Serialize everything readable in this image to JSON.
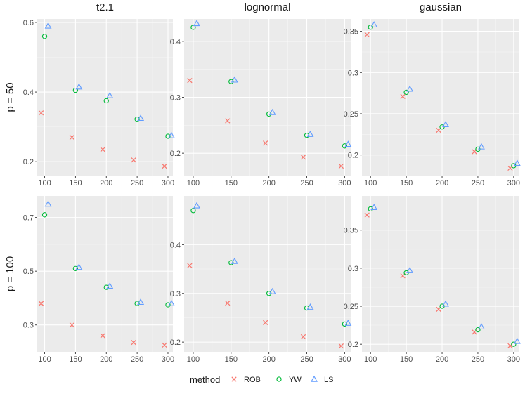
{
  "chart_data": {
    "type": "scatter",
    "facet_columns": [
      "t2.1",
      "lognormal",
      "gaussian"
    ],
    "facet_rows": [
      "p = 50",
      "p = 100"
    ],
    "legend": {
      "title": "method",
      "position": "bottom"
    },
    "grid": true,
    "series": [
      {
        "name": "ROB",
        "color": "#F8766D",
        "shape": "x"
      },
      {
        "name": "YW",
        "color": "#00BA38",
        "shape": "circle"
      },
      {
        "name": "LS",
        "color": "#619CFF",
        "shape": "triangle"
      }
    ],
    "xlim": [
      88,
      308
    ],
    "xticks": [
      100,
      150,
      200,
      250,
      300
    ],
    "x_values": [
      100,
      150,
      200,
      250,
      300
    ],
    "panels": [
      {
        "col": "t2.1",
        "row": "p = 50",
        "ylim": [
          0.16,
          0.61
        ],
        "yticks": [
          0.2,
          0.4,
          0.6
        ],
        "values": {
          "ROB": [
            0.34,
            0.27,
            0.235,
            0.205,
            0.187
          ],
          "YW": [
            0.56,
            0.405,
            0.375,
            0.322,
            0.273
          ],
          "LS": [
            0.59,
            0.415,
            0.39,
            0.325,
            0.275
          ]
        }
      },
      {
        "col": "lognormal",
        "row": "p = 50",
        "ylim": [
          0.16,
          0.44
        ],
        "yticks": [
          0.2,
          0.3,
          0.4
        ],
        "values": {
          "ROB": [
            0.33,
            0.258,
            0.218,
            0.193,
            0.177
          ],
          "YW": [
            0.425,
            0.328,
            0.27,
            0.232,
            0.213
          ],
          "LS": [
            0.432,
            0.331,
            0.273,
            0.234,
            0.216
          ]
        }
      },
      {
        "col": "gaussian",
        "row": "p = 50",
        "ylim": [
          0.175,
          0.365
        ],
        "yticks": [
          0.2,
          0.25,
          0.3,
          0.35
        ],
        "values": {
          "ROB": [
            0.346,
            0.271,
            0.23,
            0.204,
            0.184
          ],
          "YW": [
            0.355,
            0.276,
            0.234,
            0.207,
            0.187
          ],
          "LS": [
            0.358,
            0.28,
            0.237,
            0.21,
            0.19
          ]
        }
      },
      {
        "col": "t2.1",
        "row": "p = 100",
        "ylim": [
          0.2,
          0.78
        ],
        "yticks": [
          0.3,
          0.5,
          0.7
        ],
        "values": {
          "ROB": [
            0.38,
            0.3,
            0.26,
            0.235,
            0.225
          ],
          "YW": [
            0.71,
            0.51,
            0.44,
            0.38,
            0.375
          ],
          "LS": [
            0.75,
            0.515,
            0.445,
            0.385,
            0.38
          ]
        }
      },
      {
        "col": "lognormal",
        "row": "p = 100",
        "ylim": [
          0.18,
          0.5
        ],
        "yticks": [
          0.2,
          0.3,
          0.4
        ],
        "values": {
          "ROB": [
            0.357,
            0.28,
            0.24,
            0.211,
            0.192
          ],
          "YW": [
            0.47,
            0.363,
            0.3,
            0.27,
            0.237
          ],
          "LS": [
            0.48,
            0.366,
            0.304,
            0.272,
            0.239
          ]
        }
      },
      {
        "col": "gaussian",
        "row": "p = 100",
        "ylim": [
          0.19,
          0.395
        ],
        "yticks": [
          0.2,
          0.25,
          0.3,
          0.35
        ],
        "values": {
          "ROB": [
            0.37,
            0.29,
            0.246,
            0.216,
            0.198
          ],
          "YW": [
            0.378,
            0.294,
            0.25,
            0.219,
            0.2
          ],
          "LS": [
            0.38,
            0.297,
            0.253,
            0.223,
            0.204
          ]
        }
      }
    ]
  }
}
